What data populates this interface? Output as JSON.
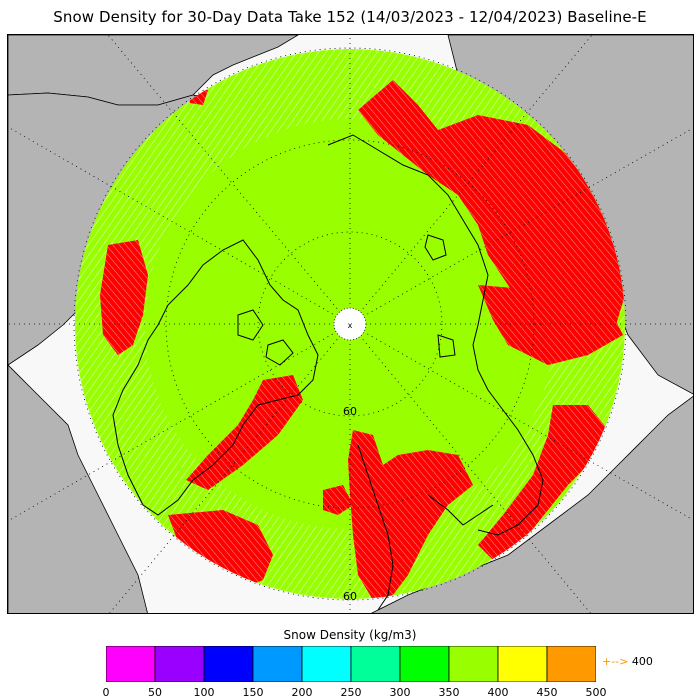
{
  "title": "Snow Density for 30-Day Data Take 152 (14/03/2023 - 12/04/2023) Baseline-E",
  "map": {
    "projection": "north-polar-stereographic",
    "latitude_labels": [
      "60",
      "60"
    ],
    "pole_marker": "pole-hole",
    "colors": {
      "ocean": "#f8f8f8",
      "land": "#b4b4b4",
      "main_fill": "#99ff00",
      "high_fill": "#ff0000",
      "coastline": "#000000"
    }
  },
  "colorbar": {
    "title": "Snow Density (kg/m3)",
    "bins": [
      {
        "from": 0,
        "to": 50,
        "color": "#ff00ff"
      },
      {
        "from": 50,
        "to": 100,
        "color": "#9900ff"
      },
      {
        "from": 100,
        "to": 150,
        "color": "#0000ff"
      },
      {
        "from": 150,
        "to": 200,
        "color": "#0099ff"
      },
      {
        "from": 200,
        "to": 250,
        "color": "#00ffff"
      },
      {
        "from": 250,
        "to": 300,
        "color": "#00ff99"
      },
      {
        "from": 300,
        "to": 350,
        "color": "#00ff00"
      },
      {
        "from": 350,
        "to": 400,
        "color": "#99ff00"
      },
      {
        "from": 400,
        "to": 450,
        "color": "#ffff00"
      },
      {
        "from": 450,
        "to": 500,
        "color": "#ff9900"
      }
    ],
    "ticks": [
      "0",
      "50",
      "100",
      "150",
      "200",
      "250",
      "300",
      "350",
      "400",
      "450",
      "500"
    ],
    "overflow_arrow": "+-->",
    "overflow_value": "400"
  }
}
